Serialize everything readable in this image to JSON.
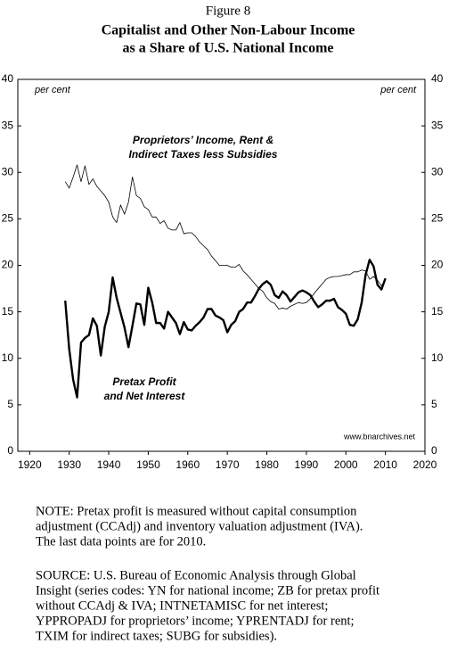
{
  "chart_data": {
    "type": "line",
    "figure_label": "Figure 8",
    "title_lines": [
      "Capitalist and Other Non-Labour Income",
      "as a Share of U.S. National Income"
    ],
    "y_unit_left": "per cent",
    "y_unit_right": "per cent",
    "source_url": "www.bnarchives.net",
    "xlim": [
      1917,
      2020
    ],
    "xticks": [
      1920,
      1930,
      1940,
      1950,
      1960,
      1970,
      1980,
      1990,
      2000,
      2010,
      2020
    ],
    "ylim": [
      0,
      40
    ],
    "yticks": [
      0,
      5,
      10,
      15,
      20,
      25,
      30,
      35,
      40
    ],
    "y2lim": [
      0,
      40
    ],
    "y2ticks": [
      0,
      5,
      10,
      15,
      20,
      25,
      30,
      35,
      40
    ],
    "x": [
      1929,
      1930,
      1931,
      1932,
      1933,
      1934,
      1935,
      1936,
      1937,
      1938,
      1939,
      1940,
      1941,
      1942,
      1943,
      1944,
      1945,
      1946,
      1947,
      1948,
      1949,
      1950,
      1951,
      1952,
      1953,
      1954,
      1955,
      1956,
      1957,
      1958,
      1959,
      1960,
      1961,
      1962,
      1963,
      1964,
      1965,
      1966,
      1967,
      1968,
      1969,
      1970,
      1971,
      1972,
      1973,
      1974,
      1975,
      1976,
      1977,
      1978,
      1979,
      1980,
      1981,
      1982,
      1983,
      1984,
      1985,
      1986,
      1987,
      1988,
      1989,
      1990,
      1991,
      1992,
      1993,
      1994,
      1995,
      1996,
      1997,
      1998,
      1999,
      2000,
      2001,
      2002,
      2003,
      2004,
      2005,
      2006,
      2007,
      2008,
      2009,
      2010
    ],
    "series": [
      {
        "label": [
          "Proprietors’ Income, Rent &",
          "Indirect Taxes less Subsidies"
        ],
        "color": "#000000",
        "width": 0.8,
        "values": [
          29,
          28.3,
          29.5,
          30.8,
          29,
          30.7,
          28.7,
          29.3,
          28.5,
          28,
          27.5,
          26.8,
          25.2,
          24.6,
          26.5,
          25.5,
          26.8,
          29.5,
          27.5,
          27.2,
          26.3,
          26,
          25.2,
          25.2,
          24.5,
          24.8,
          24,
          23.8,
          23.8,
          24.6,
          23.4,
          23.5,
          23.5,
          23.1,
          22.5,
          22.1,
          21.7,
          21,
          20.5,
          20,
          20,
          20,
          19.8,
          19.8,
          20.1,
          19.4,
          19,
          18.5,
          18,
          17.5,
          17.2,
          16.5,
          16.1,
          15.9,
          15.3,
          15.4,
          15.3,
          15.6,
          15.8,
          16,
          15.9,
          16,
          16.4,
          17,
          17.5,
          18,
          18.5,
          18.7,
          18.8,
          18.8,
          18.9,
          19,
          19,
          19.3,
          19.3,
          19.5,
          19.4,
          18.5,
          18.8,
          18.4,
          17.8,
          18.4
        ]
      },
      {
        "label": [
          "Pretax Profit",
          "and Net Interest"
        ],
        "color": "#000000",
        "width": 2.4,
        "values": [
          16.2,
          11,
          7.7,
          5.8,
          11.7,
          12.2,
          12.5,
          14.3,
          13.5,
          10.3,
          13.4,
          15,
          18.7,
          16.5,
          14.9,
          13.3,
          11.2,
          13.5,
          15.9,
          15.8,
          13.6,
          17.6,
          16,
          13.8,
          13.8,
          13.2,
          15,
          14.4,
          13.8,
          12.6,
          13.9,
          13.1,
          13,
          13.5,
          13.9,
          14.4,
          15.3,
          15.3,
          14.6,
          14.4,
          14.1,
          12.8,
          13.6,
          14,
          15,
          15.3,
          16,
          16,
          16.7,
          17.5,
          18,
          18.3,
          17.9,
          16.8,
          16.5,
          17.2,
          16.8,
          16.1,
          16.6,
          17.1,
          17.3,
          17.1,
          16.8,
          16.1,
          15.5,
          15.8,
          16.2,
          16.2,
          16.4,
          15.5,
          15.2,
          14.8,
          13.6,
          13.5,
          14.2,
          16,
          19,
          20.6,
          19.9,
          17.9,
          17.4,
          18.6
        ]
      }
    ]
  },
  "notes": {
    "note_lines": [
      "NOTE: Pretax profit is measured without capital consumption",
      "adjustment (CCAdj) and inventory valuation adjustment (IVA).",
      "The last data points are for 2010."
    ],
    "source_lines": [
      "SOURCE: U.S. Bureau of Economic Analysis through Global",
      "Insight (series codes: YN for national income; ZB for pretax profit",
      "without CCAdj & IVA; INTNETAMISC for net interest;",
      "YPPROPADJ for proprietors’ income; YPRENTADJ for rent;",
      "TXIM for indirect taxes; SUBG for subsidies)."
    ]
  }
}
